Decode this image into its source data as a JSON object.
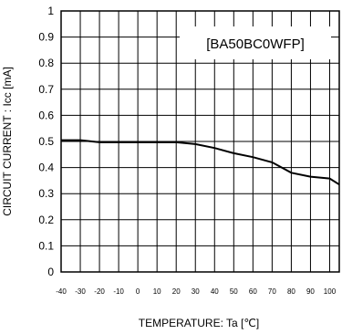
{
  "chart_data": {
    "type": "line",
    "legend_label": "[BA50BC0WFP]",
    "legend_position": "top-right",
    "xlabel": "TEMPERATURE: Ta [℃]",
    "ylabel": "CIRCUIT CURRENT : Icc [mA]",
    "xlim": [
      -40,
      100
    ],
    "ylim": [
      0,
      1
    ],
    "grid": true,
    "x_ticks": [
      "-40",
      "-30",
      "-20",
      "-10",
      "0",
      "10",
      "20",
      "30",
      "40",
      "50",
      "60",
      "70",
      "80",
      "90",
      "100"
    ],
    "y_ticks": [
      "0",
      "0.1",
      "0.2",
      "0.3",
      "0.4",
      "0.5",
      "0.6",
      "0.7",
      "0.8",
      "0.9",
      "1"
    ],
    "series": [
      {
        "x": [
          -40,
          -30,
          -20,
          -10,
          0,
          10,
          20,
          30,
          40,
          50,
          60,
          70,
          80,
          90,
          100,
          105
        ],
        "y": [
          0.505,
          0.505,
          0.497,
          0.497,
          0.497,
          0.497,
          0.497,
          0.49,
          0.475,
          0.455,
          0.44,
          0.42,
          0.38,
          0.365,
          0.358,
          0.335
        ],
        "color": "#000000"
      }
    ]
  }
}
